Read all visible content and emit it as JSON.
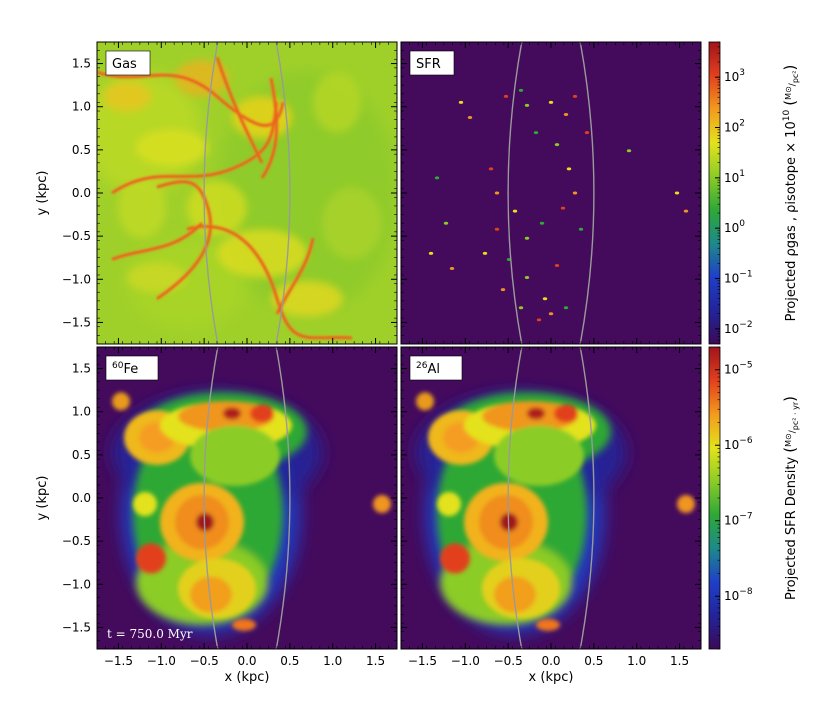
{
  "chart_data": {
    "type": "heatmap",
    "x_axis": {
      "label": "x (kpc)",
      "range": [
        -1.75,
        1.75
      ],
      "ticks": [
        "−1.5",
        "−1.0",
        "−0.5",
        "0.0",
        "0.5",
        "1.0",
        "1.5"
      ],
      "tick_values": [
        -1.5,
        -1.0,
        -0.5,
        0.0,
        0.5,
        1.0,
        1.5
      ]
    },
    "y_axis": {
      "label": "y (kpc)",
      "range": [
        -1.75,
        1.75
      ],
      "ticks": [
        "−1.5",
        "−1.0",
        "−0.5",
        "0.0",
        "0.5",
        "1.0",
        "1.5"
      ],
      "tick_values": [
        -1.5,
        -1.0,
        -0.5,
        0.0,
        0.5,
        1.0,
        1.5
      ]
    },
    "panels": [
      {
        "id": "gas",
        "label": "Gas",
        "label_sup": "",
        "colorbar": "top",
        "background": "#9fd02a"
      },
      {
        "id": "sfr",
        "label": "SFR",
        "label_sup": "",
        "colorbar": "top",
        "background": "#440a5c"
      },
      {
        "id": "fe60",
        "label": "Fe",
        "label_sup": "60",
        "colorbar": "bottom",
        "background": "#440a5c"
      },
      {
        "id": "al26",
        "label": "Al",
        "label_sup": "26",
        "colorbar": "bottom",
        "background": "#440a5c"
      }
    ],
    "annotation_time": "t = 750.0 Myr",
    "guide_arcs_x_at_y0": [
      -0.5,
      0.5
    ],
    "colorbars": [
      {
        "id": "top",
        "label_text": "Projected ρgas , ρisotope × 10",
        "label_exponent": "10",
        "unit_num": "M⊙",
        "unit_den": "pc²",
        "scale": "log",
        "range": [
          0.005,
          5000
        ],
        "ticks": [
          {
            "base": "10",
            "exp": "3",
            "value": 1000
          },
          {
            "base": "10",
            "exp": "2",
            "value": 100
          },
          {
            "base": "10",
            "exp": "1",
            "value": 10
          },
          {
            "base": "10",
            "exp": "0",
            "value": 1
          },
          {
            "base": "10",
            "exp": "−1",
            "value": 0.1
          },
          {
            "base": "10",
            "exp": "−2",
            "value": 0.01
          }
        ]
      },
      {
        "id": "bottom",
        "label_text": "Projected SFR Density",
        "unit_num": "M⊙",
        "unit_den": "pc² · yr",
        "scale": "log",
        "range": [
          2e-09,
          2e-05
        ],
        "ticks": [
          {
            "base": "10",
            "exp": "−5",
            "value": 1e-05
          },
          {
            "base": "10",
            "exp": "−6",
            "value": 1e-06
          },
          {
            "base": "10",
            "exp": "−7",
            "value": 1e-07
          },
          {
            "base": "10",
            "exp": "−8",
            "value": 1e-08
          }
        ]
      }
    ],
    "colormap": [
      "#3b0a58",
      "#22249a",
      "#1f3fc8",
      "#1d8a8a",
      "#2ea836",
      "#8ccc27",
      "#e3e21b",
      "#f39a1e",
      "#e2401d",
      "#a0141c"
    ]
  }
}
